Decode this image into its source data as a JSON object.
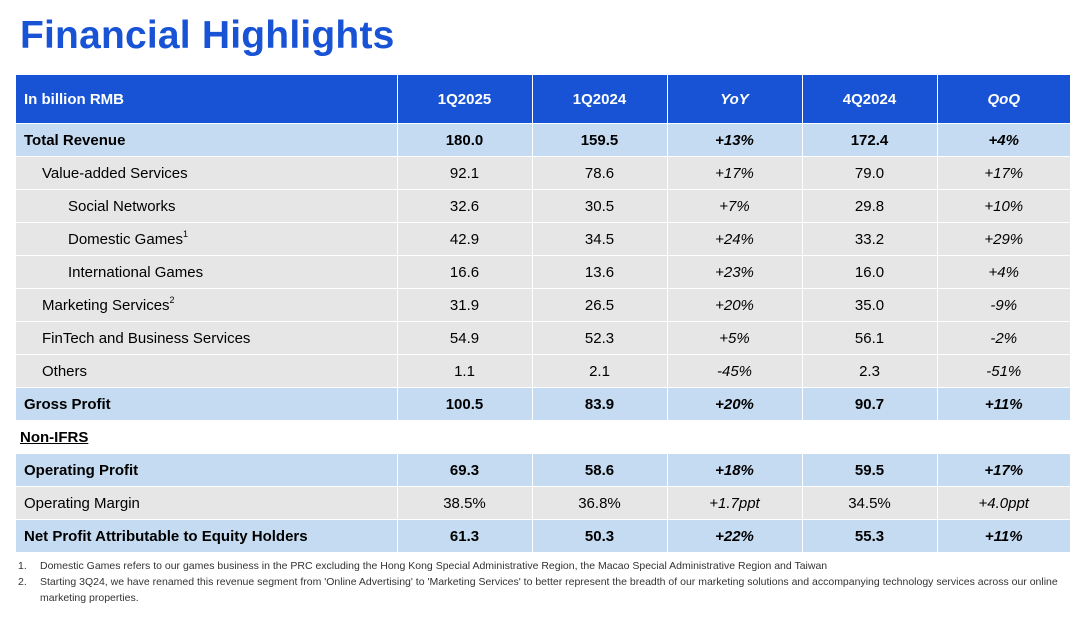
{
  "title": "Financial Highlights",
  "table": {
    "header": [
      "In billion RMB",
      "1Q2025",
      "1Q2024",
      "YoY",
      "4Q2024",
      "QoQ"
    ],
    "rows": [
      {
        "label": "Total Revenue",
        "sup": "",
        "values": [
          "180.0",
          "159.5",
          "+13%",
          "172.4",
          "+4%"
        ]
      },
      {
        "label": "Value-added Services",
        "sup": "",
        "values": [
          "92.1",
          "78.6",
          "+17%",
          "79.0",
          "+17%"
        ]
      },
      {
        "label": "Social Networks",
        "sup": "",
        "values": [
          "32.6",
          "30.5",
          "+7%",
          "29.8",
          "+10%"
        ]
      },
      {
        "label": "Domestic Games",
        "sup": "1",
        "values": [
          "42.9",
          "34.5",
          "+24%",
          "33.2",
          "+29%"
        ]
      },
      {
        "label": "International Games",
        "sup": "",
        "values": [
          "16.6",
          "13.6",
          "+23%",
          "16.0",
          "+4%"
        ]
      },
      {
        "label": "Marketing Services",
        "sup": "2",
        "values": [
          "31.9",
          "26.5",
          "+20%",
          "35.0",
          "-9%"
        ]
      },
      {
        "label": "FinTech and Business Services",
        "sup": "",
        "values": [
          "54.9",
          "52.3",
          "+5%",
          "56.1",
          "-2%"
        ]
      },
      {
        "label": "Others",
        "sup": "",
        "values": [
          "1.1",
          "2.1",
          "-45%",
          "2.3",
          "-51%"
        ]
      },
      {
        "label": "Gross Profit",
        "sup": "",
        "values": [
          "100.5",
          "83.9",
          "+20%",
          "90.7",
          "+11%"
        ]
      }
    ],
    "section": "Non-IFRS",
    "non_ifrs_rows": [
      {
        "label": "Operating Profit",
        "values": [
          "69.3",
          "58.6",
          "+18%",
          "59.5",
          "+17%"
        ]
      },
      {
        "label": "Operating Margin",
        "values": [
          "38.5%",
          "36.8%",
          "+1.7ppt",
          "34.5%",
          "+4.0ppt"
        ]
      },
      {
        "label": "Net Profit Attributable to Equity Holders",
        "values": [
          "61.3",
          "50.3",
          "+22%",
          "55.3",
          "+11%"
        ]
      }
    ]
  },
  "footnotes": [
    {
      "num": "1.",
      "text": "Domestic Games refers to our games business in the PRC excluding the Hong Kong Special Administrative Region, the Macao Special Administrative Region and Taiwan"
    },
    {
      "num": "2.",
      "text": "Starting 3Q24, we have renamed this revenue segment from 'Online Advertising' to 'Marketing Services' to better represent the breadth of our marketing solutions and accompanying technology services across our online marketing properties."
    }
  ],
  "colors": {
    "accent": "#1853d6",
    "highlight_row": "#c5dbf1",
    "normal_row": "#e6e6e6"
  }
}
